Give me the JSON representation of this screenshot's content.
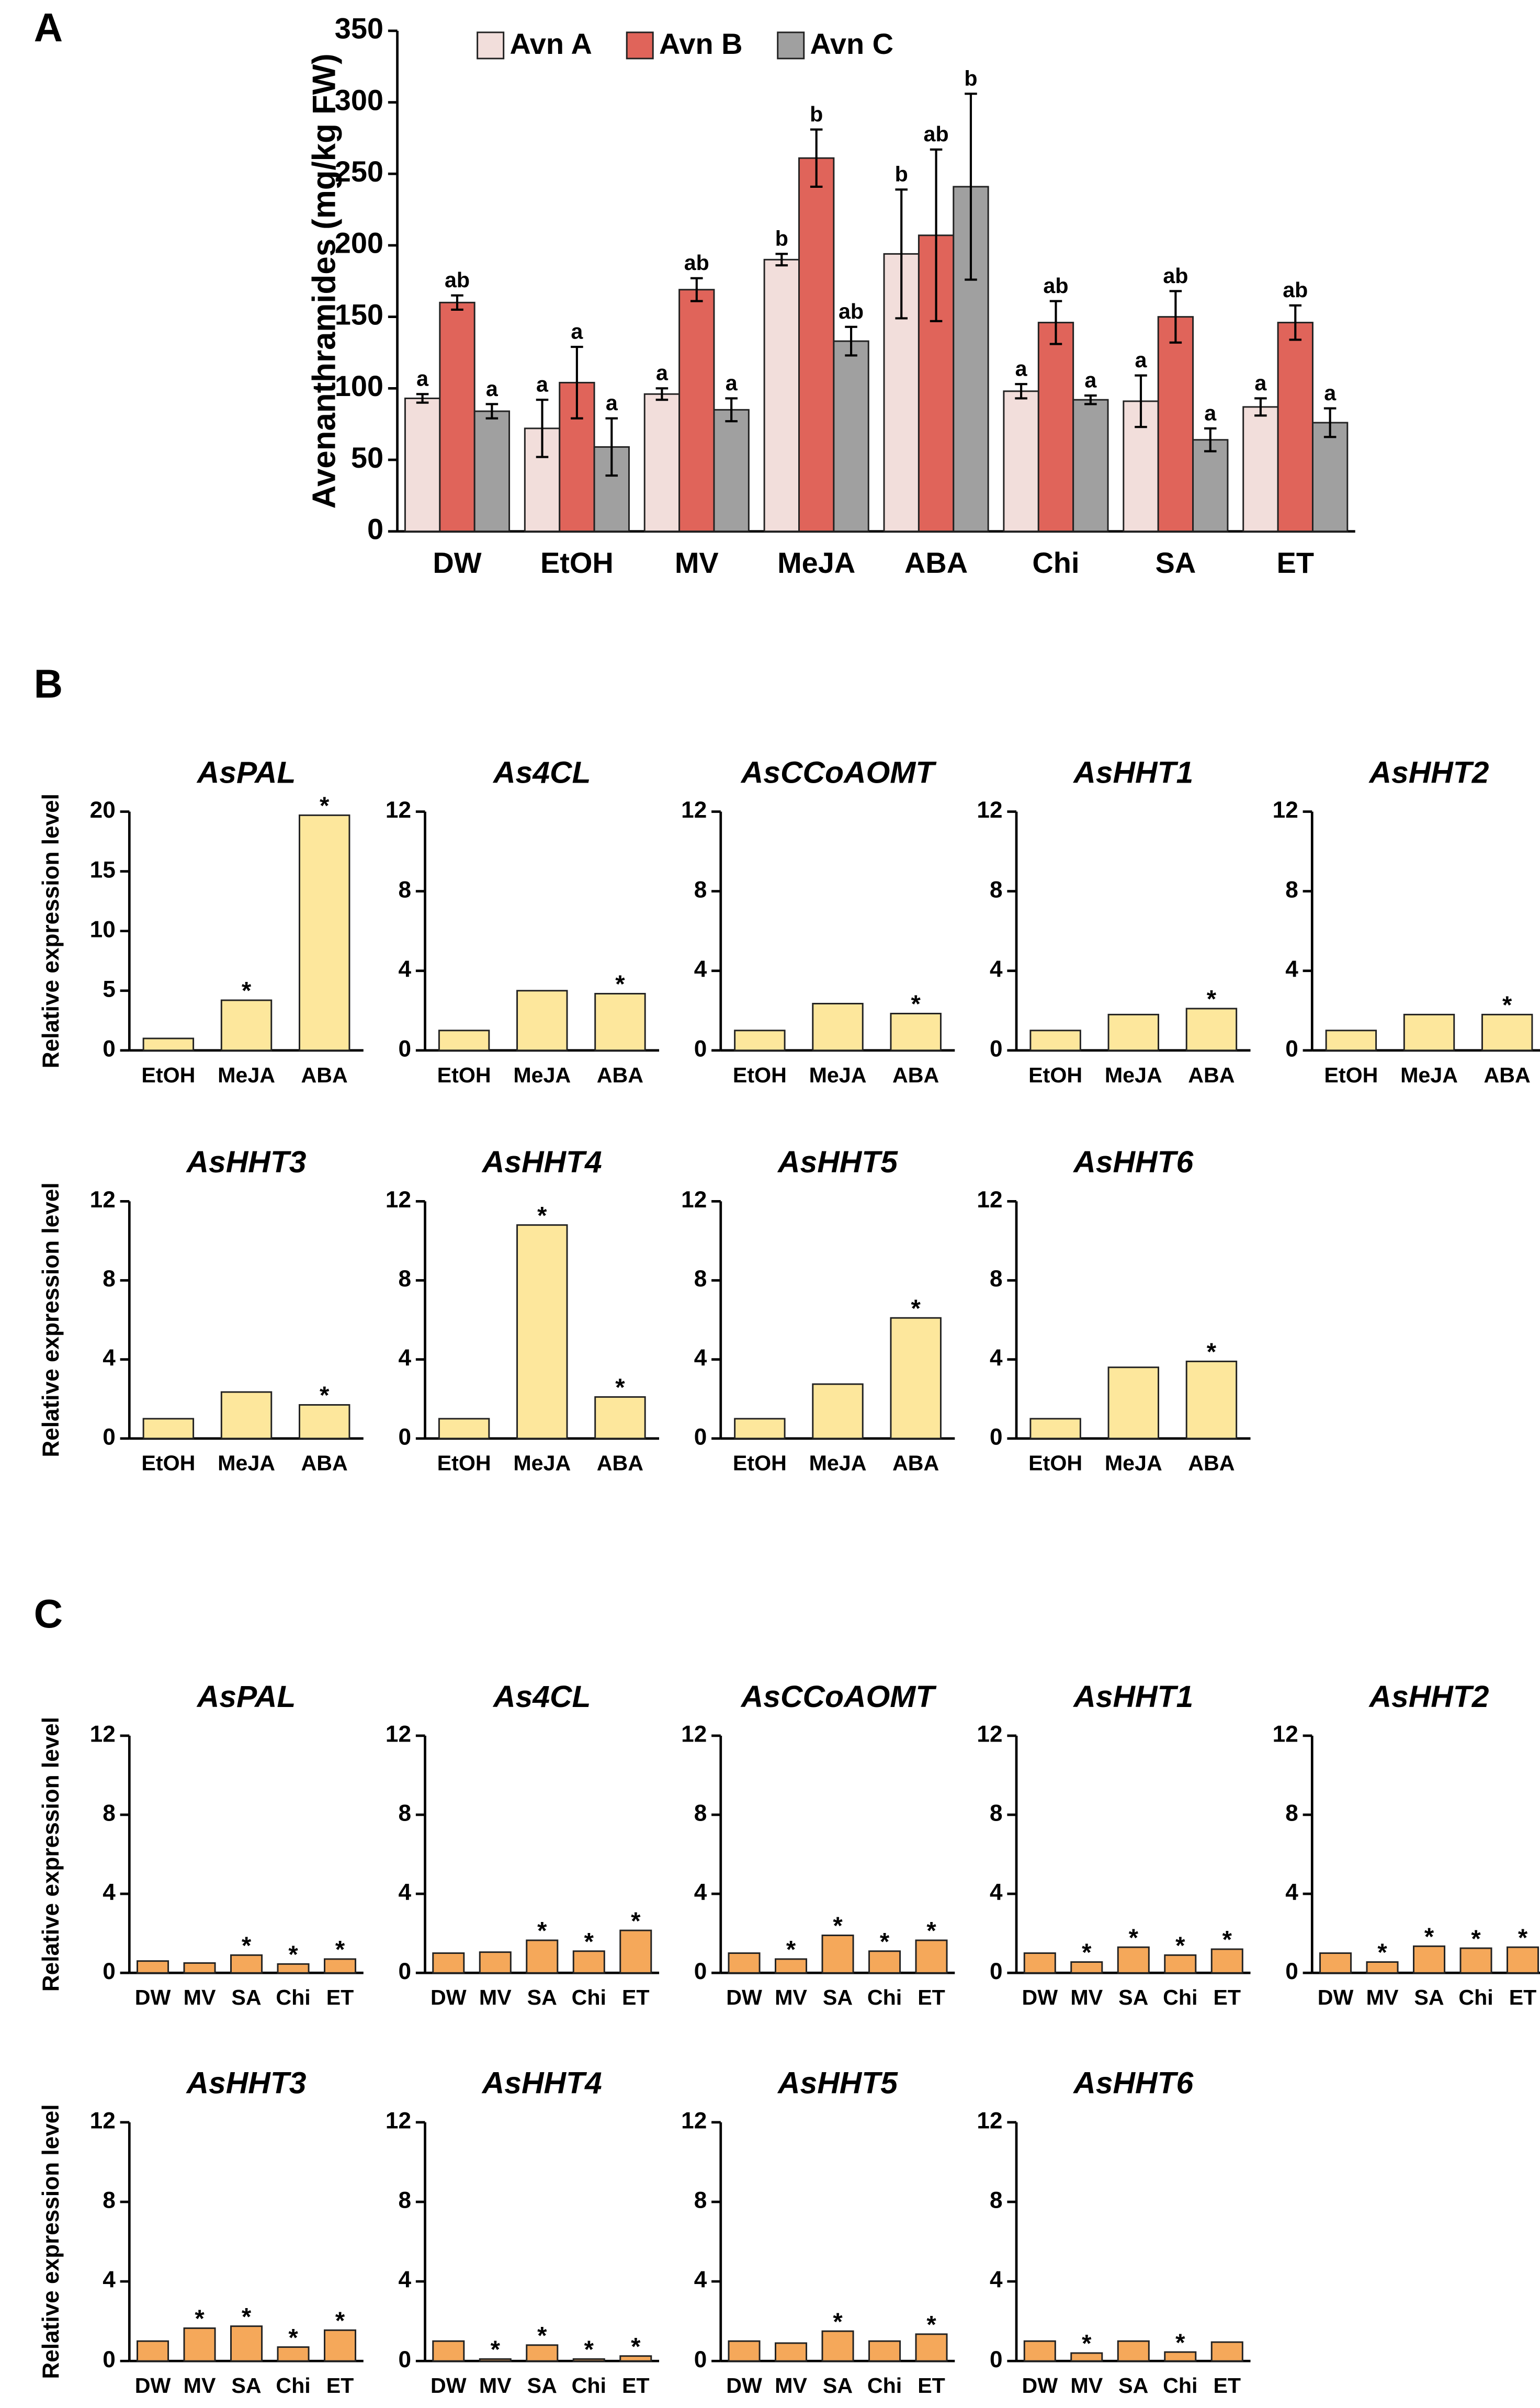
{
  "panel_labels": [
    "A",
    "B",
    "C"
  ],
  "chart_data": [
    {
      "type": "bar",
      "ylabel": "Avenanthramides (mg/kg FW)",
      "categories": [
        "DW",
        "EtOH",
        "MV",
        "MeJA",
        "ABA",
        "Chi",
        "SA",
        "ET"
      ],
      "series": [
        {
          "name": "Avn A",
          "color": "#f2dedb",
          "values": [
            93,
            72,
            96,
            190,
            194,
            98,
            91,
            87
          ],
          "errors": [
            3,
            20,
            4,
            4,
            45,
            5,
            18,
            6
          ],
          "labels": [
            "a",
            "a",
            "a",
            "b",
            "b",
            "a",
            "a",
            "a"
          ]
        },
        {
          "name": "Avn B",
          "color": "#e0645a",
          "values": [
            160,
            104,
            169,
            261,
            207,
            146,
            150,
            146
          ],
          "errors": [
            5,
            25,
            8,
            20,
            60,
            15,
            18,
            12
          ],
          "labels": [
            "ab",
            "a",
            "ab",
            "b",
            "ab",
            "ab",
            "ab",
            "ab"
          ]
        },
        {
          "name": "Avn C",
          "color": "#a0a0a0",
          "values": [
            84,
            59,
            85,
            133,
            241,
            92,
            64,
            76
          ],
          "errors": [
            5,
            20,
            8,
            10,
            65,
            3,
            8,
            10
          ],
          "labels": [
            "a",
            "a",
            "a",
            "ab",
            "b",
            "a",
            "a",
            "a"
          ]
        }
      ],
      "ylim": [
        0,
        350
      ],
      "yticks": [
        0,
        50,
        100,
        150,
        200,
        250,
        300,
        350
      ]
    },
    {
      "type": "bar",
      "title": "AsPAL",
      "ylabel": "Relative expression level",
      "categories": [
        "EtOH",
        "MeJA",
        "ABA"
      ],
      "values": [
        1,
        4.2,
        19.7
      ],
      "significance": [
        null,
        "*",
        "*"
      ],
      "color": "#fde79c",
      "ylim": [
        0,
        20
      ],
      "yticks": [
        0,
        5,
        10,
        15,
        20
      ]
    },
    {
      "type": "bar",
      "title": "As4CL",
      "categories": [
        "EtOH",
        "MeJA",
        "ABA"
      ],
      "values": [
        1,
        3,
        2.85
      ],
      "significance": [
        null,
        null,
        "*"
      ],
      "color": "#fde79c",
      "ylim": [
        0,
        12
      ],
      "yticks": [
        0,
        4,
        8,
        12
      ]
    },
    {
      "type": "bar",
      "title": "AsCCoAOMT",
      "categories": [
        "EtOH",
        "MeJA",
        "ABA"
      ],
      "values": [
        1,
        2.35,
        1.85
      ],
      "significance": [
        null,
        null,
        "*"
      ],
      "color": "#fde79c",
      "ylim": [
        0,
        12
      ],
      "yticks": [
        0,
        4,
        8,
        12
      ]
    },
    {
      "type": "bar",
      "title": "AsHHT1",
      "categories": [
        "EtOH",
        "MeJA",
        "ABA"
      ],
      "values": [
        1,
        1.8,
        2.1
      ],
      "significance": [
        null,
        null,
        "*"
      ],
      "color": "#fde79c",
      "ylim": [
        0,
        12
      ],
      "yticks": [
        0,
        4,
        8,
        12
      ]
    },
    {
      "type": "bar",
      "title": "AsHHT2",
      "categories": [
        "EtOH",
        "MeJA",
        "ABA"
      ],
      "values": [
        1,
        1.8,
        1.8
      ],
      "significance": [
        null,
        null,
        "*"
      ],
      "color": "#fde79c",
      "ylim": [
        0,
        12
      ],
      "yticks": [
        0,
        4,
        8,
        12
      ]
    },
    {
      "type": "bar",
      "title": "AsHHT3",
      "ylabel": "Relative expression level",
      "categories": [
        "EtOH",
        "MeJA",
        "ABA"
      ],
      "values": [
        1,
        2.35,
        1.7
      ],
      "significance": [
        null,
        null,
        "*"
      ],
      "color": "#fde79c",
      "ylim": [
        0,
        12
      ],
      "yticks": [
        0,
        4,
        8,
        12
      ]
    },
    {
      "type": "bar",
      "title": "AsHHT4",
      "categories": [
        "EtOH",
        "MeJA",
        "ABA"
      ],
      "values": [
        1,
        10.8,
        2.1
      ],
      "significance": [
        null,
        "*",
        "*"
      ],
      "color": "#fde79c",
      "ylim": [
        0,
        12
      ],
      "yticks": [
        0,
        4,
        8,
        12
      ]
    },
    {
      "type": "bar",
      "title": "AsHHT5",
      "categories": [
        "EtOH",
        "MeJA",
        "ABA"
      ],
      "values": [
        1,
        2.75,
        6.1
      ],
      "significance": [
        null,
        null,
        "*"
      ],
      "color": "#fde79c",
      "ylim": [
        0,
        12
      ],
      "yticks": [
        0,
        4,
        8,
        12
      ]
    },
    {
      "type": "bar",
      "title": "AsHHT6",
      "categories": [
        "EtOH",
        "MeJA",
        "ABA"
      ],
      "values": [
        1,
        3.6,
        3.9
      ],
      "significance": [
        null,
        null,
        "*"
      ],
      "color": "#fde79c",
      "ylim": [
        0,
        12
      ],
      "yticks": [
        0,
        4,
        8,
        12
      ]
    },
    {
      "type": "bar",
      "title": "AsPAL",
      "ylabel": "Relative expression level",
      "categories": [
        "DW",
        "MV",
        "SA",
        "Chi",
        "ET"
      ],
      "values": [
        0.6,
        0.5,
        0.9,
        0.45,
        0.7
      ],
      "significance": [
        null,
        null,
        "*",
        "*",
        "*"
      ],
      "color": "#f5a85a",
      "ylim": [
        0,
        12
      ],
      "yticks": [
        0,
        4,
        8,
        12
      ]
    },
    {
      "type": "bar",
      "title": "As4CL",
      "categories": [
        "DW",
        "MV",
        "SA",
        "Chi",
        "ET"
      ],
      "values": [
        1,
        1.05,
        1.65,
        1.1,
        2.15
      ],
      "significance": [
        null,
        null,
        "*",
        "*",
        "*"
      ],
      "color": "#f5a85a",
      "ylim": [
        0,
        12
      ],
      "yticks": [
        0,
        4,
        8,
        12
      ]
    },
    {
      "type": "bar",
      "title": "AsCCoAOMT",
      "categories": [
        "DW",
        "MV",
        "SA",
        "Chi",
        "ET"
      ],
      "values": [
        1,
        0.7,
        1.9,
        1.1,
        1.65
      ],
      "significance": [
        null,
        "*",
        "*",
        "*",
        "*"
      ],
      "color": "#f5a85a",
      "ylim": [
        0,
        12
      ],
      "yticks": [
        0,
        4,
        8,
        12
      ]
    },
    {
      "type": "bar",
      "title": "AsHHT1",
      "categories": [
        "DW",
        "MV",
        "SA",
        "Chi",
        "ET"
      ],
      "values": [
        1,
        0.55,
        1.3,
        0.9,
        1.2
      ],
      "significance": [
        null,
        "*",
        "*",
        "*",
        "*"
      ],
      "color": "#f5a85a",
      "ylim": [
        0,
        12
      ],
      "yticks": [
        0,
        4,
        8,
        12
      ]
    },
    {
      "type": "bar",
      "title": "AsHHT2",
      "categories": [
        "DW",
        "MV",
        "SA",
        "Chi",
        "ET"
      ],
      "values": [
        1,
        0.55,
        1.35,
        1.25,
        1.3
      ],
      "significance": [
        null,
        "*",
        "*",
        "*",
        "*"
      ],
      "color": "#f5a85a",
      "ylim": [
        0,
        12
      ],
      "yticks": [
        0,
        4,
        8,
        12
      ]
    },
    {
      "type": "bar",
      "title": "AsHHT3",
      "ylabel": "Relative expression level",
      "categories": [
        "DW",
        "MV",
        "SA",
        "Chi",
        "ET"
      ],
      "values": [
        1,
        1.65,
        1.75,
        0.7,
        1.55
      ],
      "significance": [
        null,
        "*",
        "*",
        "*",
        "*"
      ],
      "color": "#f5a85a",
      "ylim": [
        0,
        12
      ],
      "yticks": [
        0,
        4,
        8,
        12
      ]
    },
    {
      "type": "bar",
      "title": "AsHHT4",
      "categories": [
        "DW",
        "MV",
        "SA",
        "Chi",
        "ET"
      ],
      "values": [
        1,
        0.1,
        0.8,
        0.1,
        0.25
      ],
      "significance": [
        null,
        "*",
        "*",
        "*",
        "*"
      ],
      "color": "#f5a85a",
      "ylim": [
        0,
        12
      ],
      "yticks": [
        0,
        4,
        8,
        12
      ]
    },
    {
      "type": "bar",
      "title": "AsHHT5",
      "categories": [
        "DW",
        "MV",
        "SA",
        "Chi",
        "ET"
      ],
      "values": [
        1,
        0.9,
        1.5,
        1.0,
        1.35
      ],
      "significance": [
        null,
        null,
        "*",
        null,
        "*"
      ],
      "color": "#f5a85a",
      "ylim": [
        0,
        12
      ],
      "yticks": [
        0,
        4,
        8,
        12
      ]
    },
    {
      "type": "bar",
      "title": "AsHHT6",
      "categories": [
        "DW",
        "MV",
        "SA",
        "Chi",
        "ET"
      ],
      "values": [
        1,
        0.4,
        1.0,
        0.45,
        0.95
      ],
      "significance": [
        null,
        "*",
        null,
        "*",
        null
      ],
      "color": "#f5a85a",
      "ylim": [
        0,
        12
      ],
      "yticks": [
        0,
        4,
        8,
        12
      ]
    }
  ]
}
